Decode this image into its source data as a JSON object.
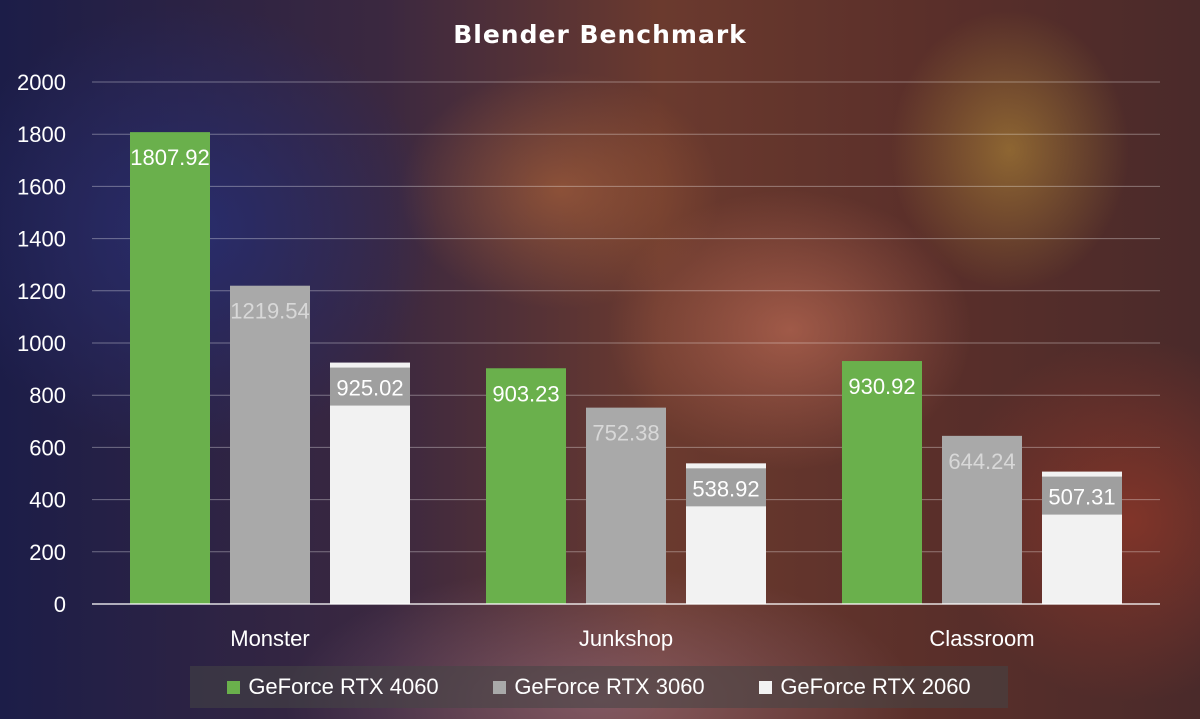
{
  "chart_data": {
    "type": "bar",
    "title": "Blender Benchmark",
    "xlabel": "",
    "ylabel": "",
    "ylim": [
      0,
      2000
    ],
    "yticks": [
      0,
      200,
      400,
      600,
      800,
      1000,
      1200,
      1400,
      1600,
      1800,
      2000
    ],
    "grid": true,
    "legend": "bottom",
    "categories": [
      "Monster",
      "Junkshop",
      "Classroom"
    ],
    "series": [
      {
        "name": "GeForce RTX 4060",
        "color": "#6ab04c",
        "values": [
          1807.92,
          903.23,
          930.92
        ],
        "labels": [
          "1807.92",
          "903.23",
          "930.92"
        ]
      },
      {
        "name": "GeForce RTX 3060",
        "color": "#a9a9a9",
        "values": [
          1219.54,
          752.38,
          644.24
        ],
        "labels": [
          "1219.54",
          "752.38",
          "644.24"
        ]
      },
      {
        "name": "GeForce RTX 2060",
        "color": "#f2f2f2",
        "values": [
          925.02,
          538.92,
          507.31
        ],
        "labels": [
          "925.02",
          "538.92",
          "507.31"
        ]
      }
    ]
  }
}
